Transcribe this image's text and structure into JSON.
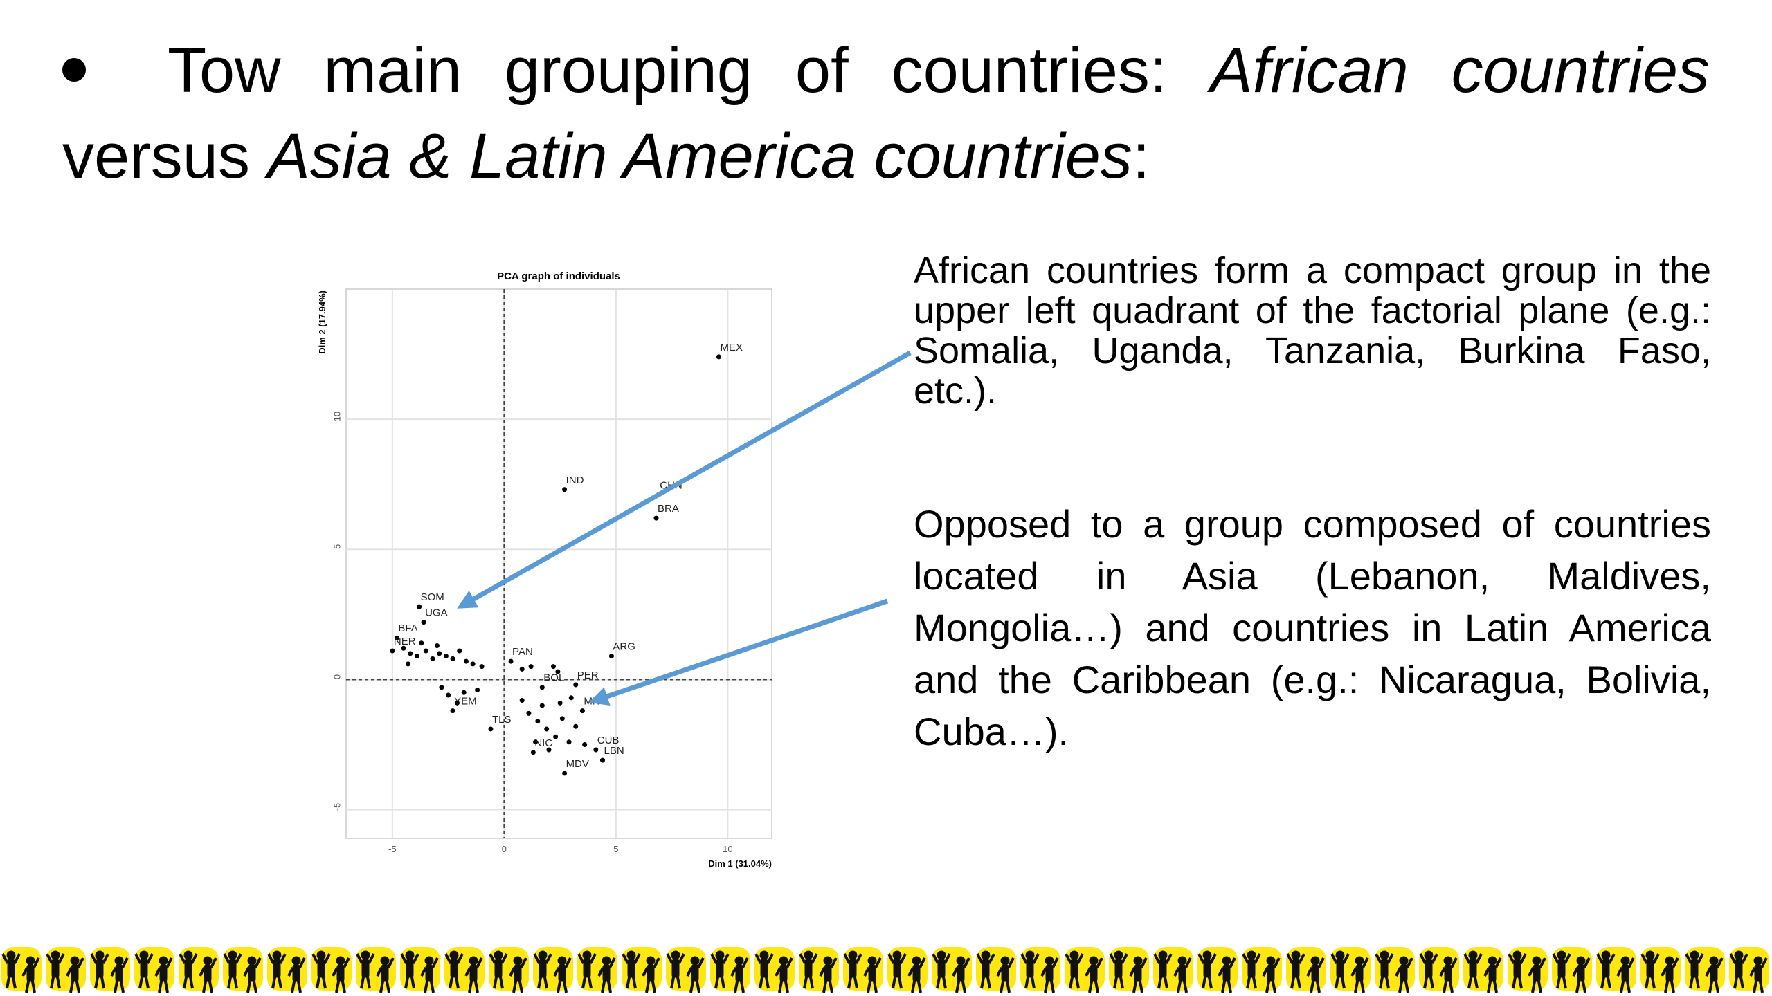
{
  "title_segments": [
    {
      "text": "Tow main grouping of countries: ",
      "italic": false
    },
    {
      "text": "African countries",
      "italic": true
    },
    {
      "text": " versus ",
      "italic": false
    },
    {
      "text": "Asia & Latin America countries",
      "italic": true
    },
    {
      "text": ":",
      "italic": false
    }
  ],
  "paragraphs": [
    "African countries form a compact group in the upper left quadrant of the factorial plane (e.g.: Somalia, Uganda, Tanzania, Burkina Faso, etc.).",
    "Opposed to a group composed of countries located in Asia (Lebanon, Maldives, Mongolia…) and countries in Latin America and the Caribbean (e.g.: Nicaragua, Bolivia, Cuba…)."
  ],
  "chart_data": {
    "type": "scatter",
    "title": "PCA graph of individuals",
    "xlabel": "Dim 1 (31.04%)",
    "ylabel": "Dim 2 (17.94%)",
    "xlim": [
      -7.07,
      11.97
    ],
    "ylim": [
      -6.1,
      15.0
    ],
    "xticks": [
      -5,
      0,
      5,
      10
    ],
    "yticks": [
      -5,
      0,
      5,
      10
    ],
    "grid": true,
    "hlines": [
      0
    ],
    "vlines": [
      0
    ],
    "color": "#000000",
    "labels": [
      "MEX",
      "IND",
      "CHN",
      "BRA",
      "ARG",
      "SOM",
      "UGA",
      "BFA",
      "NER",
      "TLS",
      "MDV",
      "LBN",
      "NIC",
      "MNG",
      "PAN",
      "BOL",
      "PER",
      "YEM",
      "CUB",
      null,
      null,
      null,
      null,
      null,
      null,
      null,
      null,
      null,
      null,
      null,
      null,
      null,
      null,
      null,
      null,
      null,
      null,
      null,
      null,
      null,
      null,
      null,
      null,
      null,
      null,
      null,
      null,
      null,
      null,
      null,
      null,
      null,
      null,
      null,
      null,
      null,
      null
    ],
    "x": [
      9.6,
      2.7,
      6.9,
      6.8,
      4.8,
      -3.8,
      -3.6,
      -4.8,
      -5.0,
      -0.6,
      2.7,
      4.4,
      1.3,
      3.5,
      0.3,
      1.7,
      3.2,
      -2.3,
      4.1,
      -4.5,
      -4.2,
      -3.9,
      -3.5,
      -3.2,
      -2.9,
      -2.6,
      -2.3,
      -2.0,
      -1.7,
      -1.4,
      -1.0,
      -3.7,
      -3.0,
      -4.3,
      -2.8,
      -2.5,
      -2.1,
      -1.8,
      -1.2,
      0.8,
      1.2,
      2.2,
      2.4,
      0.8,
      1.1,
      1.5,
      1.9,
      2.3,
      2.6,
      2.9,
      3.2,
      1.4,
      2.0,
      3.6,
      1.7,
      2.5,
      3.0
    ],
    "values": [
      12.4,
      7.3,
      7.1,
      6.2,
      0.9,
      2.8,
      2.2,
      1.6,
      1.1,
      -1.9,
      -3.6,
      -3.1,
      -2.8,
      -1.2,
      0.7,
      -0.3,
      -0.2,
      -1.2,
      -2.7,
      1.2,
      1.0,
      0.9,
      1.1,
      0.8,
      1.0,
      0.9,
      0.8,
      1.1,
      0.7,
      0.6,
      0.5,
      1.4,
      1.3,
      0.6,
      -0.3,
      -0.6,
      -0.9,
      -0.5,
      -0.4,
      0.4,
      0.5,
      0.5,
      0.3,
      -0.8,
      -1.3,
      -1.6,
      -1.9,
      -2.2,
      -1.5,
      -2.4,
      -1.8,
      -2.4,
      -2.7,
      -2.5,
      -1.0,
      -0.9,
      -0.7
    ]
  }
}
